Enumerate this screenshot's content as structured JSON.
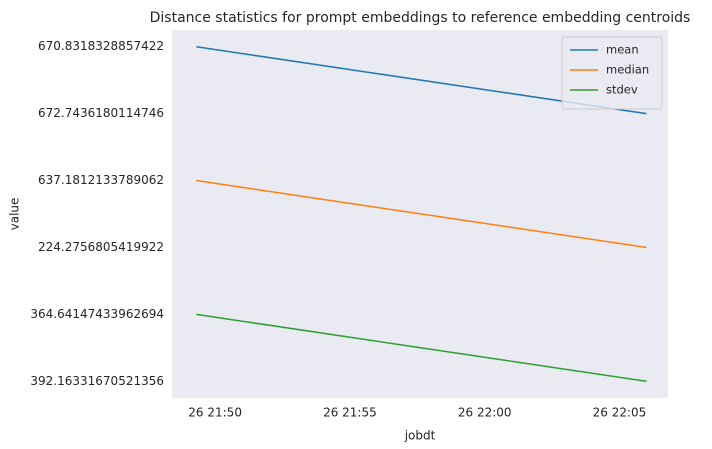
{
  "chart_data": {
    "type": "line",
    "title": "Distance statistics for prompt embeddings to reference embedding centroids",
    "xlabel": "jobdt",
    "ylabel": "value",
    "x": [
      1309.3,
      1326.0
    ],
    "xlim": [
      1308.4,
      1326.8
    ],
    "xticks": [
      {
        "value": 1310,
        "label": "26 21:50"
      },
      {
        "value": 1315,
        "label": "26 21:55"
      },
      {
        "value": 1320,
        "label": "26 22:00"
      },
      {
        "value": 1325,
        "label": "26 22:05"
      }
    ],
    "ycategories": [
      "670.8318328857422",
      "672.7436180114746",
      "637.1812133789062",
      "224.2756805419922",
      "364.64147433962694",
      "392.16331670521356"
    ],
    "series": [
      {
        "name": "mean",
        "color": "#1f77b4",
        "values": [
          "670.8318328857422",
          "672.7436180114746"
        ]
      },
      {
        "name": "median",
        "color": "#ff7f0e",
        "values": [
          "637.1812133789062",
          "224.2756805419922"
        ]
      },
      {
        "name": "stdev",
        "color": "#2ca02c",
        "values": [
          "364.64147433962694",
          "392.16331670521356"
        ]
      }
    ],
    "grid": false,
    "legend": "upper right"
  }
}
